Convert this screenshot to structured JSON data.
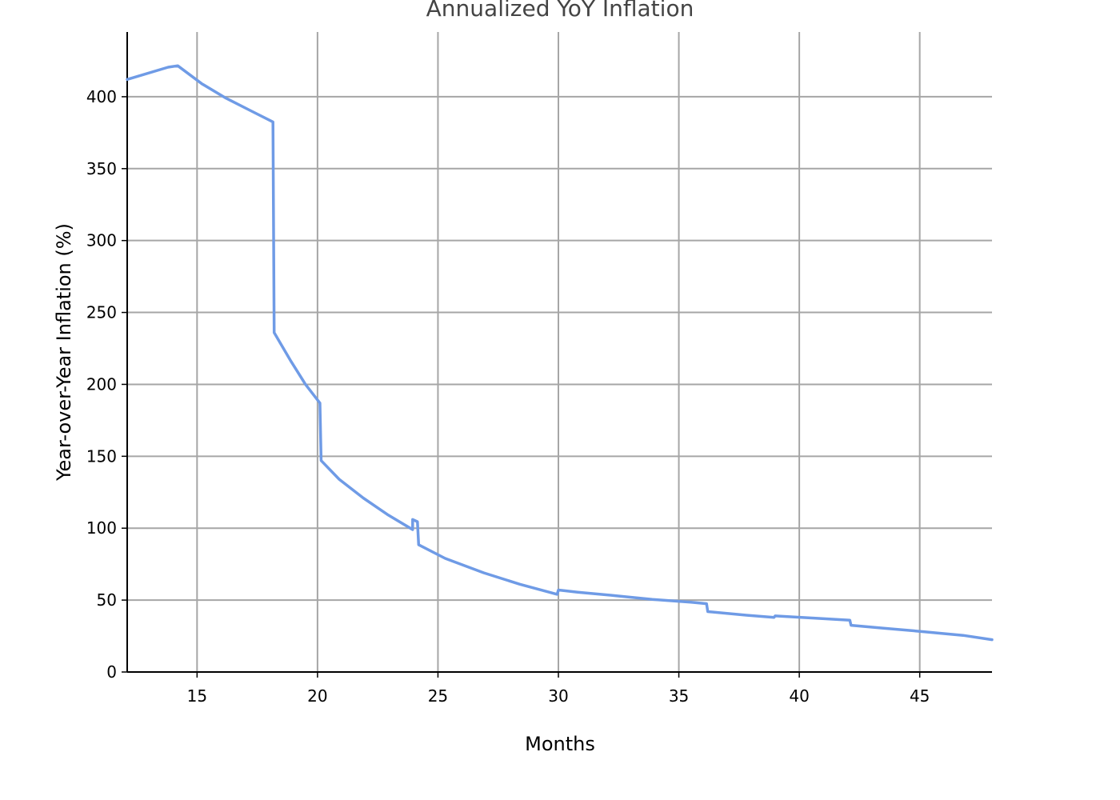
{
  "chart_data": {
    "type": "line",
    "title": "Annualized YoY Inflation",
    "xlabel": "Months",
    "ylabel": "Year-over-Year Inflation (%)",
    "xlim": [
      12.1,
      48
    ],
    "ylim": [
      0,
      445
    ],
    "xticks": [
      15,
      20,
      25,
      30,
      35,
      40,
      45
    ],
    "yticks": [
      0,
      50,
      100,
      150,
      200,
      250,
      300,
      350,
      400
    ],
    "grid": true,
    "line_color": "#6f9be6",
    "grid_color": "#a6a6a6",
    "series": [
      {
        "points": [
          [
            12.1,
            412
          ],
          [
            13.8,
            420.5
          ],
          [
            14.2,
            421.5
          ],
          [
            15.2,
            409
          ],
          [
            16.2,
            399
          ],
          [
            17.2,
            390.5
          ],
          [
            18.15,
            382.5
          ],
          [
            18.2,
            236
          ],
          [
            18.9,
            216
          ],
          [
            19.5,
            200
          ],
          [
            20.1,
            187
          ],
          [
            20.15,
            147
          ],
          [
            20.9,
            134
          ],
          [
            21.9,
            121
          ],
          [
            22.9,
            109.5
          ],
          [
            23.95,
            99
          ],
          [
            23.95,
            106
          ],
          [
            24.15,
            104.5
          ],
          [
            24.2,
            88.5
          ],
          [
            25.3,
            79
          ],
          [
            26.9,
            69
          ],
          [
            28.4,
            61
          ],
          [
            29.95,
            54
          ],
          [
            30.0,
            57
          ],
          [
            30.8,
            55.5
          ],
          [
            32.4,
            53
          ],
          [
            33.9,
            50.5
          ],
          [
            35.5,
            48.5
          ],
          [
            36.15,
            47.5
          ],
          [
            36.2,
            42
          ],
          [
            37.8,
            39.5
          ],
          [
            38.95,
            38
          ],
          [
            39.0,
            39
          ],
          [
            40.6,
            37.5
          ],
          [
            42.1,
            36
          ],
          [
            42.15,
            32.5
          ],
          [
            43.5,
            30.5
          ],
          [
            45.2,
            28
          ],
          [
            46.8,
            25.5
          ],
          [
            48.0,
            22.5
          ]
        ]
      }
    ]
  }
}
